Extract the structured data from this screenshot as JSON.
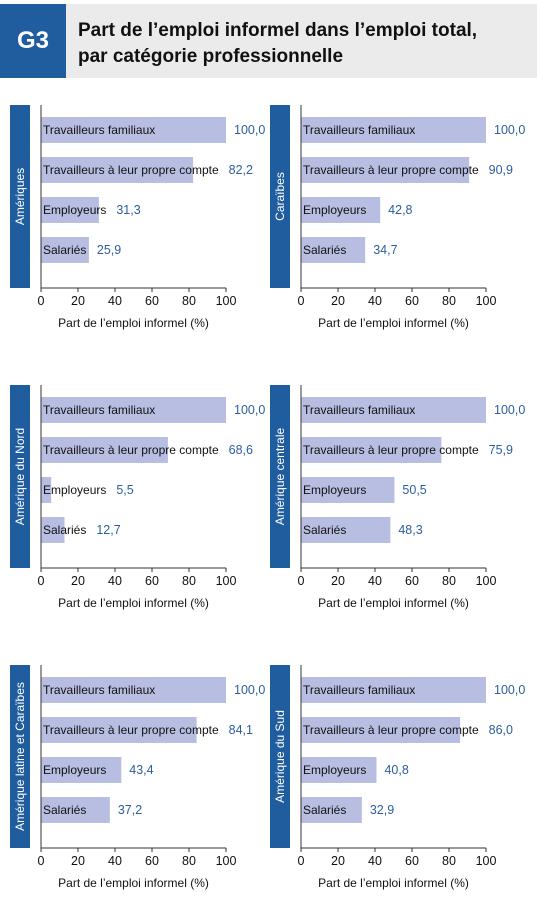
{
  "header": {
    "badge": "G3",
    "title_line1": "Part de l’emploi informel dans l’emploi total,",
    "title_line2": "par catégorie professionnelle"
  },
  "colors": {
    "header_blue": "#1f5d9f",
    "header_bg": "#ebebeb",
    "bar": "#b8bde2",
    "value_text": "#2b5e9e",
    "axis": "#333333"
  },
  "chart_data": [
    {
      "type": "bar",
      "orientation": "horizontal",
      "region": "Amériques",
      "categories": [
        "Travailleurs familiaux",
        "Travailleurs à leur propre compte",
        "Employeurs",
        "Salariés"
      ],
      "values": [
        100.0,
        82.2,
        31.3,
        25.9
      ],
      "value_labels": [
        "100,0",
        "82,2",
        "31,3",
        "25,9"
      ],
      "xlabel": "Part de l’emploi informel (%)",
      "xlim": [
        0,
        100
      ],
      "xticks": [
        "0",
        "20",
        "40",
        "60",
        "80",
        "100"
      ],
      "grid": false
    },
    {
      "type": "bar",
      "orientation": "horizontal",
      "region": "Caraïbes",
      "categories": [
        "Travailleurs familiaux",
        "Travailleurs à leur propre compte",
        "Employeurs",
        "Salariés"
      ],
      "values": [
        100.0,
        90.9,
        42.8,
        34.7
      ],
      "value_labels": [
        "100,0",
        "90,9",
        "42,8",
        "34,7"
      ],
      "xlabel": "Part de l’emploi informel (%)",
      "xlim": [
        0,
        100
      ],
      "xticks": [
        "0",
        "20",
        "40",
        "60",
        "80",
        "100"
      ],
      "grid": false
    },
    {
      "type": "bar",
      "orientation": "horizontal",
      "region": "Amérique du Nord",
      "categories": [
        "Travailleurs familiaux",
        "Travailleurs à leur propre compte",
        "Employeurs",
        "Salariés"
      ],
      "values": [
        100.0,
        68.6,
        5.5,
        12.7
      ],
      "value_labels": [
        "100,0",
        "68,6",
        "5,5",
        "12,7"
      ],
      "xlabel": "Part de l’emploi informel (%)",
      "xlim": [
        0,
        100
      ],
      "xticks": [
        "0",
        "20",
        "40",
        "60",
        "80",
        "100"
      ],
      "grid": false
    },
    {
      "type": "bar",
      "orientation": "horizontal",
      "region": "Amérique centrale",
      "categories": [
        "Travailleurs familiaux",
        "Travailleurs à leur propre compte",
        "Employeurs",
        "Salariés"
      ],
      "values": [
        100.0,
        75.9,
        50.5,
        48.3
      ],
      "value_labels": [
        "100,0",
        "75,9",
        "50,5",
        "48,3"
      ],
      "xlabel": "Part de l’emploi informel (%)",
      "xlim": [
        0,
        100
      ],
      "xticks": [
        "0",
        "20",
        "40",
        "60",
        "80",
        "100"
      ],
      "grid": false
    },
    {
      "type": "bar",
      "orientation": "horizontal",
      "region": "Amérique latine et Caraïbes",
      "categories": [
        "Travailleurs familiaux",
        "Travailleurs à leur propre compte",
        "Employeurs",
        "Salariés"
      ],
      "values": [
        100.0,
        84.1,
        43.4,
        37.2
      ],
      "value_labels": [
        "100,0",
        "84,1",
        "43,4",
        "37,2"
      ],
      "xlabel": "Part de l’emploi informel (%)",
      "xlim": [
        0,
        100
      ],
      "xticks": [
        "0",
        "20",
        "40",
        "60",
        "80",
        "100"
      ],
      "grid": false
    },
    {
      "type": "bar",
      "orientation": "horizontal",
      "region": "Amérique du Sud",
      "categories": [
        "Travailleurs familiaux",
        "Travailleurs à leur propre compte",
        "Employeurs",
        "Salariés"
      ],
      "values": [
        100.0,
        86.0,
        40.8,
        32.9
      ],
      "value_labels": [
        "100,0",
        "86,0",
        "40,8",
        "32,9"
      ],
      "xlabel": "Part de l’emploi informel (%)",
      "xlim": [
        0,
        100
      ],
      "xticks": [
        "0",
        "20",
        "40",
        "60",
        "80",
        "100"
      ],
      "grid": false
    }
  ]
}
